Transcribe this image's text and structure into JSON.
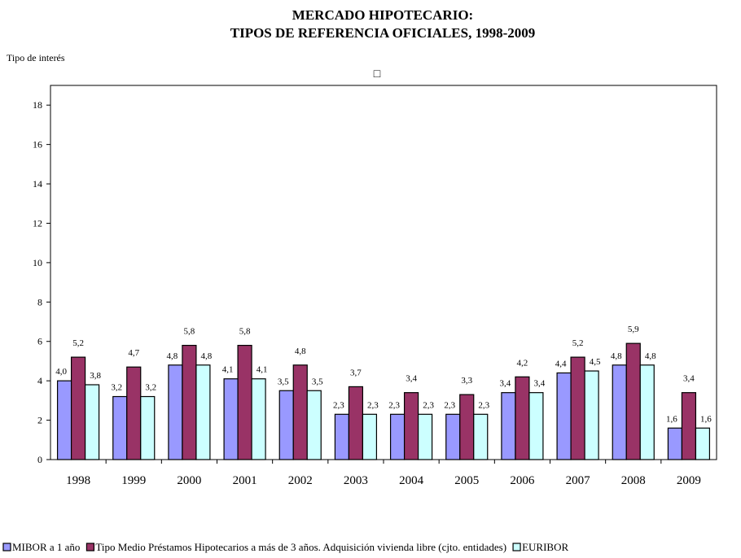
{
  "chart_data": {
    "type": "bar",
    "title": "MERCADO HIPOTECARIO:",
    "title_line2": "TIPOS DE REFERENCIA OFICIALES, 1998-2009",
    "subtitle": "□",
    "y_axis_label": "Tipo de interés",
    "categories": [
      "1998",
      "1999",
      "2000",
      "2001",
      "2002",
      "2003",
      "2004",
      "2005",
      "2006",
      "2007",
      "2008",
      "2009"
    ],
    "series": [
      {
        "name": "MIBOR a 1 año",
        "color": "#9999ff",
        "values": [
          4.0,
          3.2,
          4.8,
          4.1,
          3.5,
          2.3,
          2.3,
          2.3,
          3.4,
          4.4,
          4.8,
          1.6
        ],
        "value_labels": [
          "4,0",
          "3,2",
          "4,8",
          "4,1",
          "3,5",
          "2,3",
          "2,3",
          "2,3",
          "3,4",
          "4,4",
          "4,8",
          "1,6"
        ]
      },
      {
        "name": "Tipo Medio Préstamos Hipotecarios a más de 3 años. Adquisición vivienda libre (cjto. entidades)",
        "color": "#993366",
        "values": [
          5.2,
          4.7,
          5.8,
          5.8,
          4.8,
          3.7,
          3.4,
          3.3,
          4.2,
          5.2,
          5.9,
          3.4
        ],
        "value_labels": [
          "5,2",
          "4,7",
          "5,8",
          "5,8",
          "4,8",
          "3,7",
          "3,4",
          "3,3",
          "4,2",
          "5,2",
          "5,9",
          "3,4"
        ]
      },
      {
        "name": "EURIBOR",
        "color": "#ccffff",
        "values": [
          3.8,
          3.2,
          4.8,
          4.1,
          3.5,
          2.3,
          2.3,
          2.3,
          3.4,
          4.5,
          4.8,
          1.6
        ],
        "value_labels": [
          "3,8",
          "3,2",
          "4,8",
          "4,1",
          "3,5",
          "2,3",
          "2,3",
          "2,3",
          "3,4",
          "4,5",
          "4,8",
          "1,6"
        ]
      }
    ],
    "ylim": [
      0,
      19
    ],
    "yticks": [
      0,
      2,
      4,
      6,
      8,
      10,
      12,
      14,
      16,
      18
    ],
    "legend": "bottom"
  }
}
